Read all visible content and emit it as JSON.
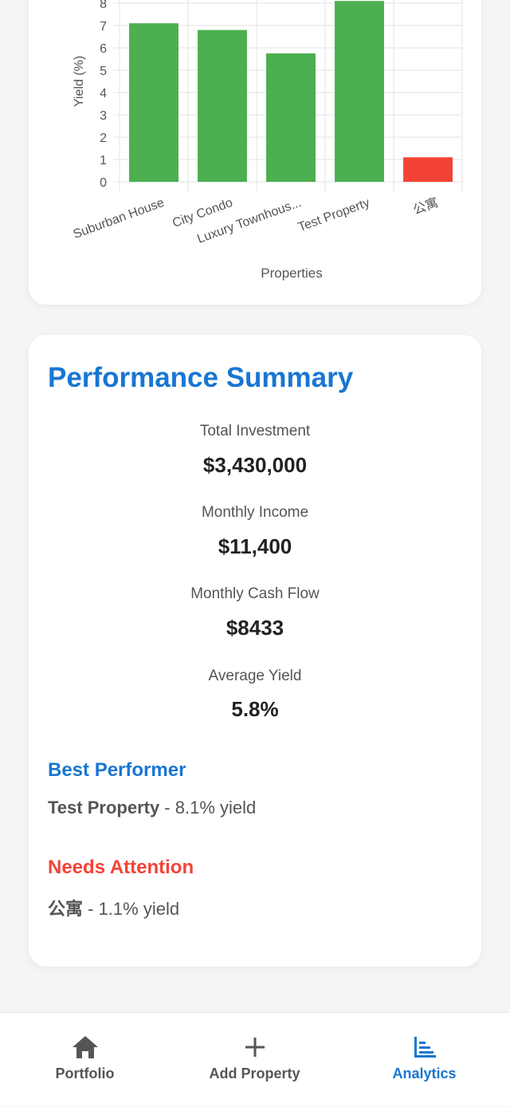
{
  "chart_data": {
    "type": "bar",
    "categories": [
      "Suburban House",
      "City Condo",
      "Luxury Townhous...",
      "Test Property",
      "公寓"
    ],
    "values": [
      7.1,
      6.8,
      5.75,
      8.1,
      1.1
    ],
    "bar_colors": [
      "#4caf50",
      "#4caf50",
      "#4caf50",
      "#4caf50",
      "#f44336"
    ],
    "xlabel": "Properties",
    "ylabel": "Yield (%)",
    "yticks": [
      0,
      1,
      2,
      3,
      4,
      5,
      6,
      7,
      8
    ],
    "ylim": [
      0,
      8
    ],
    "grid": true
  },
  "summary": {
    "title": "Performance Summary",
    "stats": [
      {
        "label": "Total Investment",
        "value": "$3,430,000"
      },
      {
        "label": "Monthly Income",
        "value": "$11,400"
      },
      {
        "label": "Monthly Cash Flow",
        "value": "$8433"
      },
      {
        "label": "Average Yield",
        "value": "5.8%"
      }
    ],
    "best": {
      "heading": "Best Performer",
      "name": "Test Property",
      "detail": " - 8.1% yield",
      "color": "#1976d2"
    },
    "attention": {
      "heading": "Needs Attention",
      "name": "公寓",
      "detail": " - 1.1% yield",
      "color": "#f44336"
    }
  },
  "nav": {
    "items": [
      {
        "label": "Portfolio",
        "icon": "home-icon"
      },
      {
        "label": "Add Property",
        "icon": "plus-icon"
      },
      {
        "label": "Analytics",
        "icon": "bar-chart-icon"
      }
    ],
    "active": 2,
    "accent": "#1976d2"
  }
}
